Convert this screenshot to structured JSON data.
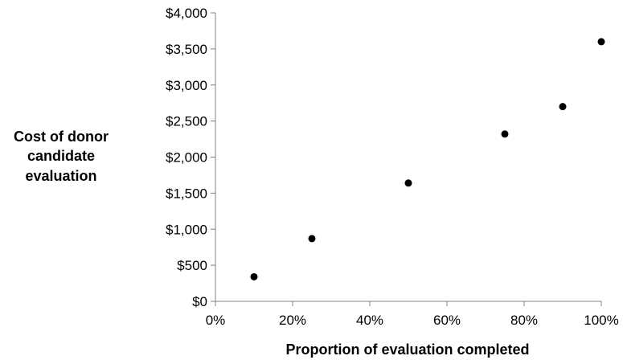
{
  "chart_data": {
    "type": "scatter",
    "xlabel": "Proportion of evaluation completed",
    "ylabel_lines": [
      "Cost of donor",
      "candidate",
      "evaluation"
    ],
    "x_ticks": [
      "0%",
      "20%",
      "40%",
      "60%",
      "80%",
      "100%"
    ],
    "y_ticks": [
      "$0",
      "$500",
      "$1,000",
      "$1,500",
      "$2,000",
      "$2,500",
      "$3,000",
      "$3,500",
      "$4,000"
    ],
    "xlim": [
      0,
      100
    ],
    "ylim": [
      0,
      4000
    ],
    "grid": false,
    "legend": "none",
    "marker_color": "#000000",
    "axis_color": "#808080",
    "points": [
      {
        "x": 10,
        "y": 340
      },
      {
        "x": 25,
        "y": 870
      },
      {
        "x": 50,
        "y": 1640
      },
      {
        "x": 75,
        "y": 2320
      },
      {
        "x": 90,
        "y": 2700
      },
      {
        "x": 100,
        "y": 3600
      }
    ]
  }
}
